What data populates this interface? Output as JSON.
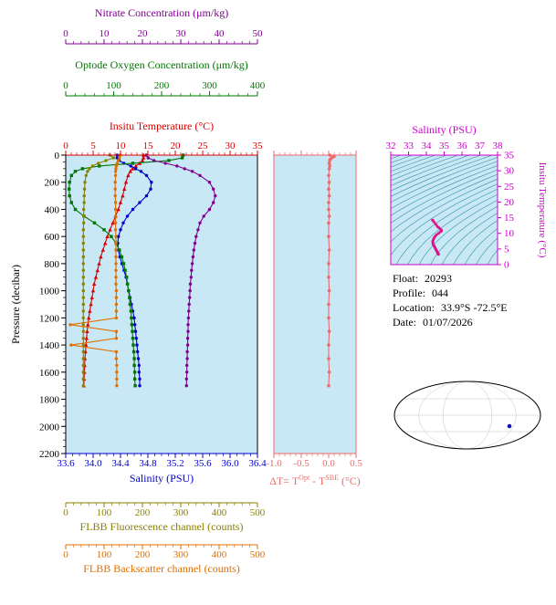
{
  "colors": {
    "nitrate": "#800090",
    "oxygen": "#007700",
    "temperature": "#dd0000",
    "salinity": "#0000cc",
    "fluorescence": "#8b8000",
    "backscatter": "#e06f00",
    "delta_t": "#ef6a6a",
    "ts": "#cc00cc",
    "ts_curve": "#e01188",
    "plot_bg": "#c8e8f6",
    "contour": "#2f8f9f",
    "map_land": "#f3b0ba",
    "map_outline": "#000000",
    "marker": "#1111bb",
    "pressure_axis": "#000000"
  },
  "info": {
    "float_label": "Float:",
    "float_value": "20293",
    "profile_label": "Profile:",
    "profile_value": "044",
    "location_label": "Location:",
    "location_value": "33.9°S -72.5°E",
    "date_label": "Date:",
    "date_value": "01/07/2026"
  },
  "chart_data": [
    {
      "id": "profiles",
      "type": "line",
      "ylabel": "Pressure (decibar)",
      "ylim": [
        0,
        2200
      ],
      "yticks": [
        "0",
        "200",
        "400",
        "600",
        "800",
        "1000",
        "1200",
        "1400",
        "1600",
        "1800",
        "2000",
        "2200"
      ],
      "y_minor": 50,
      "x_axes": [
        {
          "id": "nitrate",
          "label": "Nitrate Concentration (μm/kg)",
          "lim": [
            0,
            50
          ],
          "ticks": [
            "0",
            "10",
            "20",
            "30",
            "40",
            "50"
          ],
          "minor": 2
        },
        {
          "id": "oxygen",
          "label": "Optode Oxygen Concentration (μm/kg)",
          "lim": [
            0,
            400
          ],
          "ticks": [
            "0",
            "100",
            "200",
            "300",
            "400"
          ],
          "minor": 20
        },
        {
          "id": "temperature",
          "label": "Insitu Temperature (°C)",
          "lim": [
            0,
            35
          ],
          "ticks": [
            "0",
            "5",
            "10",
            "15",
            "20",
            "25",
            "30",
            "35"
          ],
          "minor": 1
        },
        {
          "id": "salinity",
          "label": "Salinity (PSU)",
          "lim": [
            33.6,
            36.4
          ],
          "ticks": [
            "33.6",
            "34.0",
            "34.4",
            "34.8",
            "35.2",
            "35.6",
            "36.0",
            "36.4"
          ],
          "minor": 0.1
        },
        {
          "id": "fluorescence",
          "label": "FLBB Fluorescence channel (counts)",
          "lim": [
            0,
            500
          ],
          "ticks": [
            "0",
            "100",
            "200",
            "300",
            "400",
            "500"
          ],
          "minor": 20
        },
        {
          "id": "backscatter",
          "label": "FLBB Backscatter channel (counts)",
          "lim": [
            0,
            500
          ],
          "ticks": [
            "0",
            "100",
            "200",
            "300",
            "400",
            "500"
          ],
          "minor": 20
        }
      ],
      "pressure": [
        0,
        20,
        40,
        60,
        80,
        100,
        120,
        150,
        200,
        250,
        300,
        350,
        400,
        450,
        500,
        550,
        600,
        650,
        700,
        750,
        800,
        850,
        900,
        950,
        1000,
        1050,
        1100,
        1150,
        1200,
        1250,
        1300,
        1350,
        1400,
        1450,
        1500,
        1550,
        1600,
        1650,
        1700
      ],
      "series": [
        {
          "name": "Insitu Temperature",
          "axis": "temperature",
          "marker": "triangle",
          "values": [
            14.2,
            14.2,
            14.0,
            13.5,
            12.8,
            12.2,
            11.8,
            11.4,
            11.0,
            10.7,
            10.4,
            10.0,
            9.6,
            9.1,
            8.6,
            8.1,
            7.6,
            7.2,
            6.8,
            6.4,
            6.1,
            5.8,
            5.5,
            5.2,
            5.0,
            4.8,
            4.6,
            4.4,
            4.2,
            4.05,
            3.9,
            3.8,
            3.7,
            3.6,
            3.5,
            3.45,
            3.4,
            3.35,
            3.3
          ]
        },
        {
          "name": "Salinity",
          "axis": "salinity",
          "marker": "circle",
          "values": [
            34.35,
            34.35,
            34.38,
            34.45,
            34.55,
            34.62,
            34.7,
            34.78,
            34.85,
            34.84,
            34.78,
            34.68,
            34.58,
            34.5,
            34.44,
            34.4,
            34.37,
            34.36,
            34.37,
            34.39,
            34.42,
            34.45,
            34.48,
            34.5,
            34.52,
            34.54,
            34.56,
            34.58,
            34.6,
            34.61,
            34.62,
            34.63,
            34.64,
            34.65,
            34.66,
            34.67,
            34.67,
            34.68,
            34.68
          ]
        },
        {
          "name": "Optode Oxygen Concentration",
          "axis": "oxygen",
          "marker": "square",
          "values": [
            245,
            243,
            215,
            140,
            70,
            35,
            20,
            12,
            8,
            7,
            8,
            12,
            20,
            38,
            60,
            80,
            95,
            105,
            112,
            117,
            121,
            124,
            127,
            129,
            131,
            133,
            134,
            136,
            137,
            138,
            139,
            140,
            141,
            142,
            143,
            143,
            144,
            144,
            145
          ]
        },
        {
          "name": "Nitrate Concentration",
          "axis": "nitrate",
          "marker": "circle",
          "values": [
            21,
            21.5,
            23,
            26,
            29,
            31,
            33,
            35,
            37.5,
            38.5,
            39,
            38.5,
            37.5,
            36,
            35,
            34.5,
            34,
            33.7,
            33.4,
            33.2,
            33,
            32.8,
            32.7,
            32.5,
            32.4,
            32.3,
            32.2,
            32.1,
            32,
            31.9,
            31.9,
            31.8,
            31.8,
            31.7,
            31.7,
            31.6,
            31.6,
            31.5,
            31.5
          ]
        },
        {
          "name": "FLBB Fluorescence channel",
          "axis": "fluorescence",
          "marker": "circle",
          "values": [
            115,
            125,
            105,
            85,
            70,
            62,
            57,
            53,
            50,
            49,
            48,
            48,
            47,
            47,
            47,
            46,
            46,
            46,
            46,
            46,
            46,
            46,
            46,
            46,
            46,
            46,
            46,
            46,
            46,
            46,
            46,
            46,
            46,
            46,
            46,
            46,
            46,
            46,
            46
          ]
        },
        {
          "name": "FLBB Backscatter channel",
          "axis": "backscatter",
          "marker": "circle",
          "values": [
            142,
            140,
            137,
            134,
            132,
            131,
            130,
            130,
            129,
            129,
            129,
            130,
            130,
            130,
            130,
            130,
            131,
            131,
            131,
            131,
            131,
            131,
            131,
            131,
            132,
            132,
            132,
            132,
            132,
            12,
            132,
            132,
            14,
            132,
            132,
            133,
            133,
            133,
            133
          ]
        }
      ]
    },
    {
      "id": "delta_t",
      "type": "line",
      "xlabel": "ΔT= TOpt - TSBE (°C)",
      "xlabel_parts": {
        "p1": "ΔT= T",
        "sup1": "Opt",
        "p2": " - T",
        "sup2": "SBE",
        "p3": " (°C)"
      },
      "xlim": [
        -1.0,
        0.5
      ],
      "xticks": [
        "-1.0",
        "-0.5",
        "0.0",
        "0.5"
      ],
      "x_minor": 0.1,
      "ylim": [
        0,
        2200
      ],
      "series": [
        {
          "name": "Delta T",
          "pressure": [
            0,
            10,
            20,
            30,
            40,
            60,
            80,
            100,
            150,
            200,
            250,
            300,
            350,
            400,
            450,
            500,
            600,
            700,
            800,
            900,
            1000,
            1100,
            1200,
            1300,
            1400,
            1500,
            1600,
            1700
          ],
          "values": [
            0.02,
            0.1,
            0.06,
            0.03,
            0.02,
            0.01,
            0.02,
            0.01,
            0.0,
            0.01,
            0.0,
            0.01,
            0.0,
            0.0,
            0.01,
            0.0,
            0.0,
            0.01,
            0.0,
            0.0,
            0.01,
            0.0,
            0.0,
            0.01,
            0.0,
            0.0,
            0.01,
            0.0
          ]
        }
      ]
    },
    {
      "id": "ts_diagram",
      "type": "line",
      "xlabel": "Salinity (PSU)",
      "ylabel": "Insitu Temperature (°C)",
      "xlim": [
        32,
        38
      ],
      "ylim": [
        0,
        35
      ],
      "xticks": [
        "32",
        "33",
        "34",
        "35",
        "36",
        "37",
        "38"
      ],
      "yticks": [
        "0",
        "5",
        "10",
        "15",
        "20",
        "25",
        "30",
        "35"
      ],
      "contour_sigma": [
        18,
        18.5,
        19,
        19.5,
        20,
        20.5,
        21,
        21.5,
        22,
        22.5,
        23,
        23.5,
        24,
        24.5,
        25,
        25.5,
        26,
        26.5,
        27,
        27.5,
        28,
        28.5,
        29,
        29.5,
        30
      ],
      "series": [
        {
          "name": "T-S curve",
          "salinity": [
            34.35,
            34.35,
            34.38,
            34.45,
            34.55,
            34.62,
            34.7,
            34.78,
            34.85,
            34.84,
            34.78,
            34.68,
            34.58,
            34.5,
            34.44,
            34.4,
            34.37,
            34.36,
            34.37,
            34.39,
            34.42,
            34.45,
            34.48,
            34.5,
            34.52,
            34.54,
            34.56,
            34.58,
            34.6,
            34.61,
            34.62,
            34.63,
            34.64,
            34.65,
            34.66,
            34.67,
            34.67,
            34.68,
            34.68
          ],
          "temperature": [
            14.2,
            14.2,
            14.0,
            13.5,
            12.8,
            12.2,
            11.8,
            11.4,
            11.0,
            10.7,
            10.4,
            10.0,
            9.6,
            9.1,
            8.6,
            8.1,
            7.6,
            7.2,
            6.8,
            6.4,
            6.1,
            5.8,
            5.5,
            5.2,
            5.0,
            4.8,
            4.6,
            4.4,
            4.2,
            4.05,
            3.9,
            3.8,
            3.7,
            3.6,
            3.5,
            3.45,
            3.4,
            3.35,
            3.3
          ]
        }
      ]
    }
  ]
}
